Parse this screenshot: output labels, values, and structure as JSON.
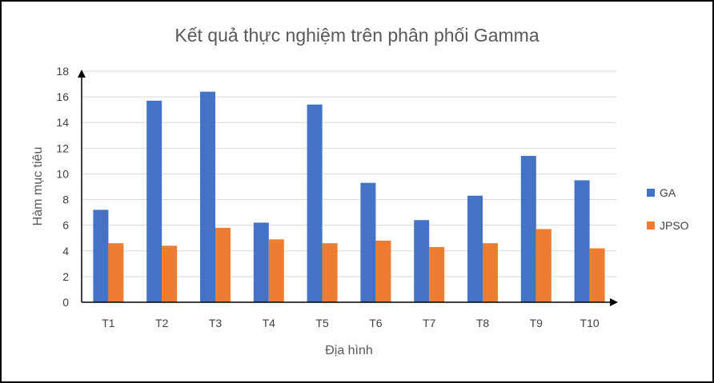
{
  "chart_data": {
    "type": "bar",
    "title": "Kết quả thực nghiệm trên phân phối Gamma",
    "xlabel": "Địa hình",
    "ylabel": "Hàm mục tiêu",
    "categories": [
      "T1",
      "T2",
      "T3",
      "T4",
      "T5",
      "T6",
      "T7",
      "T8",
      "T9",
      "T10"
    ],
    "series": [
      {
        "name": "GA",
        "color": "#4472C4",
        "values": [
          7.2,
          15.7,
          16.4,
          6.2,
          15.4,
          9.3,
          6.4,
          8.3,
          11.4,
          9.5
        ]
      },
      {
        "name": "JPSO",
        "color": "#ED7D31",
        "values": [
          4.6,
          4.4,
          5.8,
          4.9,
          4.6,
          4.8,
          4.3,
          4.6,
          5.7,
          4.2
        ]
      }
    ],
    "ylim": [
      0,
      18
    ],
    "yticks": [
      "0",
      "2",
      "4",
      "6",
      "8",
      "10",
      "12",
      "14",
      "16",
      "18"
    ],
    "grid": true,
    "legend_position": "right"
  }
}
